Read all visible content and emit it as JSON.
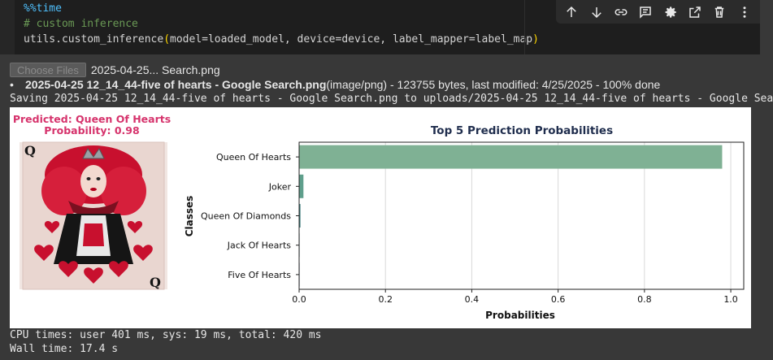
{
  "code_cell": {
    "line1": "%%time",
    "line2": "# custom inference",
    "line3_prefix": "utils.custom_inference",
    "line3_args": "model=loaded_model, device=device, label_mapper=label_map"
  },
  "toolbar": {
    "icons": [
      "arrow-up-icon",
      "arrow-down-icon",
      "link-icon",
      "comment-icon",
      "settings-icon",
      "open-in-tab-icon",
      "delete-icon",
      "more-icon"
    ]
  },
  "upload": {
    "button_label": "Choose Files",
    "file_name": "2025-04-25... Search.png",
    "info_name": "2025-04-25 12_14_44-five of hearts - Google Search.png",
    "info_rest": "(image/png) - 123755 bytes, last modified: 4/25/2025 - 100% done",
    "saving_line": "Saving 2025-04-25 12_14_44-five of hearts - Google Search.png to uploads/2025-04-25 12_14_44-five of hearts - Google Sea"
  },
  "prediction": {
    "predicted_text": "Predicted: Queen Of Hearts",
    "probability_text": "Probability: 0.98",
    "title_color": "#d6336c"
  },
  "chart_data": {
    "type": "bar",
    "orientation": "horizontal",
    "title": "Top 5 Prediction Probabilities",
    "xlabel": "Probabilities",
    "ylabel": "Classes",
    "categories": [
      "Queen Of Hearts",
      "Joker",
      "Queen Of Diamonds",
      "Jack Of Hearts",
      "Five Of Hearts"
    ],
    "values": [
      0.98,
      0.01,
      0.003,
      0.001,
      0.0005
    ],
    "xlim": [
      0,
      1.03
    ],
    "xticks": [
      "0.0",
      "0.2",
      "0.4",
      "0.6",
      "0.8",
      "1.0"
    ],
    "xtick_values": [
      0,
      0.2,
      0.4,
      0.6,
      0.8,
      1.0
    ],
    "grid": "x",
    "bar_colors": [
      "#7fb194",
      "#5f9f8c",
      "#3a7a7a",
      "#2f5e6e",
      "#2d4468"
    ]
  },
  "footer": {
    "cpu_times": "CPU times: user 401 ms, sys: 19 ms, total: 420 ms",
    "wall_time": "Wall time: 17.4 s"
  }
}
